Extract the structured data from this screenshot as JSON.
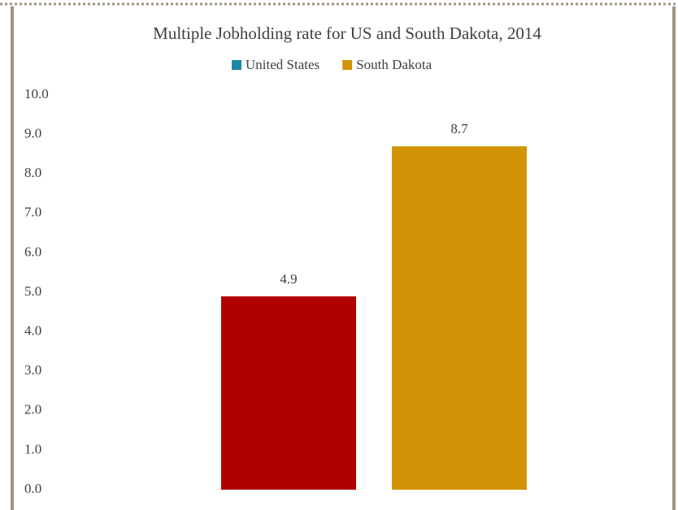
{
  "chart_data": {
    "type": "bar",
    "title": "Multiple Jobholding rate for US and South Dakota, 2014",
    "categories": [
      null
    ],
    "series": [
      {
        "name": "United States",
        "color": "#b00000",
        "legend_color": "#1f87a6",
        "values": [
          4.9
        ]
      },
      {
        "name": "South Dakota",
        "color": "#d39307",
        "legend_color": "#d39307",
        "values": [
          8.7
        ]
      }
    ],
    "ylim": [
      0,
      10
    ],
    "yticks": [
      {
        "value": 0,
        "label": "0.0"
      },
      {
        "value": 1,
        "label": "1.0"
      },
      {
        "value": 2,
        "label": "2.0"
      },
      {
        "value": 3,
        "label": "3.0"
      },
      {
        "value": 4,
        "label": "4.0"
      },
      {
        "value": 5,
        "label": "5.0"
      },
      {
        "value": 6,
        "label": "6.0"
      },
      {
        "value": 7,
        "label": "7.0"
      },
      {
        "value": 8,
        "label": "8.0"
      },
      {
        "value": 9,
        "label": "9.0"
      },
      {
        "value": 10,
        "label": "10.0"
      }
    ],
    "legend": "top"
  }
}
